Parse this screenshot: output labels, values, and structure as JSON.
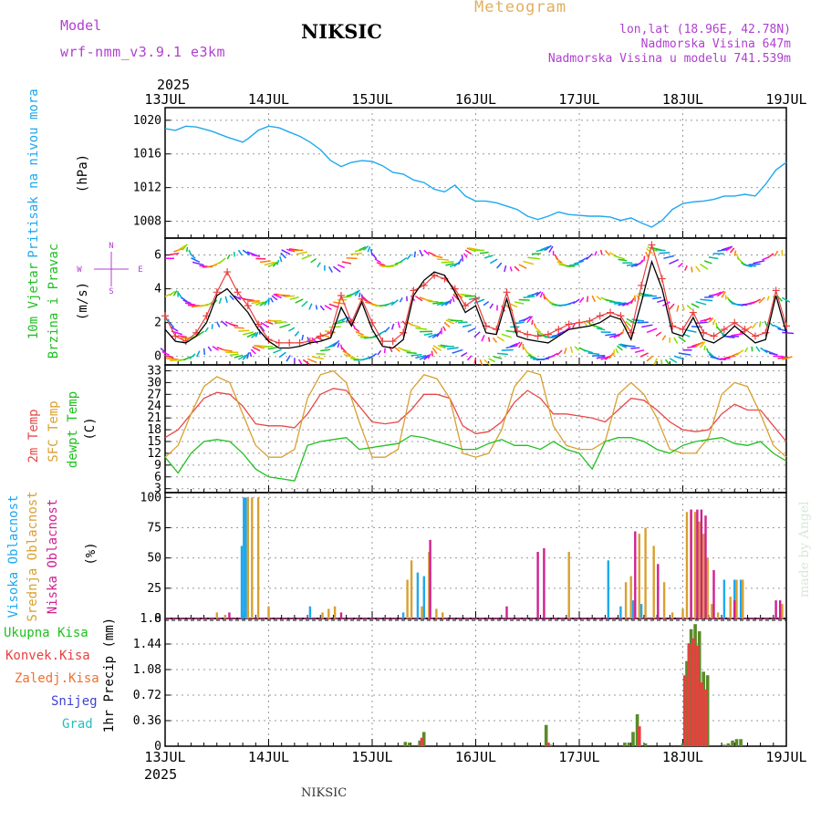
{
  "header": {
    "model_label": "Model",
    "model_name": "wrf-nmm_v3.9.1 e3km",
    "station_title": "NIKSIC",
    "product": "Meteogram",
    "lonlat": "lon,lat (18.96E, 42.78N)",
    "elevation": "Nadmorska Visina 647m",
    "model_elevation": "Nadmorska Visina u modelu 741.539m",
    "footer_station": "NIKSIC",
    "credit": "made by Angel"
  },
  "colors": {
    "pressure": "#1ea8f0",
    "wind_obs": "#e84040",
    "wind_line": "#000000",
    "t2m": "#e84848",
    "sfc": "#d8a030",
    "dewpt": "#20c020",
    "high_cloud": "#1ea8f0",
    "mid_cloud": "#d8a030",
    "low_cloud": "#d02090",
    "total_precip": "#5a8a28",
    "conv_precip": "#e84040",
    "frz_precip": "#f07030",
    "snow": "#4040d0",
    "hail": "#20c0c0",
    "magenta_label": "#b040d0"
  },
  "chart_data": [
    {
      "type": "line",
      "panel": "pressure",
      "year": "2025",
      "x_labels": [
        "13JUL",
        "14JUL",
        "15JUL",
        "16JUL",
        "17JUL",
        "18JUL",
        "19JUL"
      ],
      "xlabel_days": [
        0,
        1,
        2,
        3,
        4,
        5,
        6
      ],
      "ylabel_main": "Pritisak na nivou mora",
      "ylabel_unit": "(hPa)",
      "ylim": [
        1006,
        1021.5
      ],
      "yticks": [
        1008,
        1012,
        1016,
        1020
      ],
      "x": [
        0,
        0.1,
        0.2,
        0.3,
        0.45,
        0.6,
        0.75,
        0.8,
        0.9,
        1.0,
        1.1,
        1.2,
        1.3,
        1.4,
        1.5,
        1.6,
        1.7,
        1.8,
        1.9,
        2.0,
        2.1,
        2.2,
        2.3,
        2.4,
        2.5,
        2.6,
        2.7,
        2.8,
        2.9,
        3.0,
        3.1,
        3.2,
        3.3,
        3.4,
        3.5,
        3.6,
        3.7,
        3.8,
        3.9,
        4.0,
        4.1,
        4.2,
        4.3,
        4.4,
        4.5,
        4.6,
        4.7,
        4.8,
        4.9,
        5.0,
        5.1,
        5.2,
        5.3,
        5.4,
        5.5,
        5.6,
        5.7,
        5.8,
        5.9,
        6.0
      ],
      "values": [
        1019.0,
        1018.8,
        1019.3,
        1019.2,
        1018.7,
        1018.0,
        1017.4,
        1017.8,
        1018.8,
        1019.3,
        1019.1,
        1018.6,
        1018.1,
        1017.4,
        1016.5,
        1015.2,
        1014.5,
        1015.0,
        1015.2,
        1015.1,
        1014.6,
        1013.8,
        1013.6,
        1012.9,
        1012.6,
        1011.8,
        1011.5,
        1012.3,
        1011.0,
        1010.4,
        1010.4,
        1010.2,
        1009.8,
        1009.4,
        1008.6,
        1008.2,
        1008.6,
        1009.1,
        1008.8,
        1008.7,
        1008.6,
        1008.6,
        1008.5,
        1008.1,
        1008.4,
        1007.8,
        1007.3,
        1008.1,
        1009.4,
        1010.1,
        1010.3,
        1010.4,
        1010.6,
        1011.0,
        1011.0,
        1011.2,
        1011.0,
        1012.4,
        1014.1,
        1015.0
      ],
      "series": [
        {
          "name": "Pritisak"
        }
      ]
    },
    {
      "type": "line",
      "panel": "wind",
      "ylabel_main1": "10m Vjetar",
      "ylabel_main2": "Brzina i Pravac",
      "ylabel_unit": "(m/s)",
      "compass": [
        "N",
        "W",
        "E",
        "S"
      ],
      "ylim": [
        -0.5,
        7.0
      ],
      "yticks": [
        0,
        2,
        4,
        6
      ],
      "x": [
        0,
        0.1,
        0.2,
        0.3,
        0.4,
        0.5,
        0.6,
        0.7,
        0.8,
        0.9,
        1.0,
        1.1,
        1.2,
        1.3,
        1.4,
        1.5,
        1.6,
        1.7,
        1.8,
        1.9,
        2.0,
        2.1,
        2.2,
        2.3,
        2.4,
        2.5,
        2.6,
        2.7,
        2.8,
        2.9,
        3.0,
        3.1,
        3.2,
        3.3,
        3.4,
        3.5,
        3.6,
        3.7,
        3.8,
        3.9,
        4.0,
        4.1,
        4.2,
        4.3,
        4.4,
        4.5,
        4.6,
        4.7,
        4.8,
        4.9,
        5.0,
        5.1,
        5.2,
        5.3,
        5.4,
        5.5,
        5.6,
        5.7,
        5.8,
        5.9,
        6.0
      ],
      "series": [
        {
          "name": "model",
          "values": [
            1.6,
            0.9,
            0.8,
            1.2,
            2.0,
            3.6,
            4.0,
            3.3,
            2.6,
            1.6,
            0.9,
            0.5,
            0.5,
            0.6,
            0.8,
            0.9,
            1.1,
            2.9,
            1.8,
            3.2,
            1.6,
            0.6,
            0.5,
            1.0,
            3.6,
            4.5,
            5.0,
            4.8,
            3.8,
            2.6,
            3.0,
            1.4,
            1.3,
            3.4,
            1.2,
            1.0,
            0.9,
            0.8,
            1.2,
            1.6,
            1.7,
            1.8,
            2.0,
            2.4,
            2.2,
            1.0,
            3.2,
            5.6,
            4.0,
            1.4,
            1.2,
            2.3,
            1.0,
            0.8,
            1.2,
            1.8,
            1.3,
            0.8,
            1.0,
            3.6,
            1.4
          ]
        },
        {
          "name": "obs",
          "values": [
            2.4,
            1.2,
            0.9,
            1.4,
            2.4,
            3.8,
            5.0,
            3.8,
            3.0,
            1.9,
            1.0,
            0.8,
            0.8,
            0.8,
            0.9,
            1.2,
            1.4,
            3.6,
            2.0,
            3.4,
            2.0,
            0.9,
            0.9,
            1.4,
            3.9,
            4.2,
            4.8,
            4.6,
            4.0,
            3.0,
            3.4,
            1.8,
            1.6,
            3.8,
            1.5,
            1.3,
            1.2,
            1.3,
            1.6,
            1.9,
            2.0,
            2.1,
            2.4,
            2.6,
            2.4,
            1.4,
            4.2,
            6.6,
            4.6,
            1.8,
            1.6,
            2.6,
            1.4,
            1.2,
            1.6,
            2.0,
            1.6,
            1.2,
            1.4,
            3.9,
            1.8
          ]
        }
      ]
    },
    {
      "type": "line",
      "panel": "temperature",
      "ylabel_a": "2m Temp",
      "ylabel_b": "SFC Temp",
      "ylabel_c": "dewpt Temp",
      "ylabel_unit": "(C)",
      "ylim": [
        2,
        34.5
      ],
      "yticks": [
        3,
        6,
        9,
        12,
        15,
        18,
        21,
        24,
        27,
        30,
        33
      ],
      "x": [
        0,
        0.125,
        0.25,
        0.375,
        0.5,
        0.625,
        0.75,
        0.875,
        1.0,
        1.125,
        1.25,
        1.375,
        1.5,
        1.625,
        1.75,
        1.875,
        2.0,
        2.125,
        2.25,
        2.375,
        2.5,
        2.625,
        2.75,
        2.875,
        3.0,
        3.125,
        3.25,
        3.375,
        3.5,
        3.625,
        3.75,
        3.875,
        4.0,
        4.125,
        4.25,
        4.375,
        4.5,
        4.625,
        4.75,
        4.875,
        5.0,
        5.125,
        5.25,
        5.375,
        5.5,
        5.625,
        5.75,
        5.875,
        6.0
      ],
      "series": [
        {
          "name": "2m Temp",
          "values": [
            16,
            18,
            22,
            26,
            27.5,
            27,
            24,
            19.5,
            19,
            19,
            18.5,
            22,
            27,
            28.5,
            28,
            24,
            20,
            19.5,
            20,
            23,
            27,
            27,
            26,
            19,
            17,
            17.5,
            20,
            25,
            28,
            26,
            22,
            22,
            21.5,
            21,
            20,
            23,
            26,
            25.5,
            23,
            20,
            18,
            17.5,
            18,
            22,
            24.5,
            23,
            23,
            19,
            15
          ]
        },
        {
          "name": "SFC Temp",
          "values": [
            11,
            14,
            22,
            29,
            31.5,
            30,
            22,
            14,
            11,
            11,
            13,
            26,
            32,
            33,
            30,
            20,
            11,
            11,
            13,
            28,
            32,
            31,
            26,
            12,
            11,
            12,
            18,
            29,
            33,
            32,
            19,
            14,
            13,
            13,
            15,
            27,
            30,
            27,
            21,
            13,
            12,
            12,
            16,
            27,
            30,
            29,
            22,
            14,
            11
          ]
        },
        {
          "name": "dewpt Temp",
          "values": [
            11,
            7,
            12,
            15,
            15.5,
            15,
            12,
            8,
            6,
            5.5,
            5,
            14,
            15,
            15.5,
            16,
            13,
            13.5,
            14,
            14.5,
            16.5,
            16,
            15,
            14,
            13,
            13,
            14.5,
            15.5,
            14,
            14,
            13,
            15,
            13,
            12,
            8,
            15,
            16,
            16,
            15,
            13,
            12,
            14,
            15,
            15.5,
            16,
            14.5,
            14,
            15,
            12,
            10
          ]
        }
      ]
    },
    {
      "type": "bar",
      "panel": "clouds",
      "ylabel_a": "Visoka Oblacnost",
      "ylabel_b": "Srednja Oblacnost",
      "ylabel_c": "Niska Oblacnost",
      "ylabel_unit": "(%)",
      "ylim": [
        0,
        104
      ],
      "yticks": [
        0,
        25,
        50,
        75,
        100
      ],
      "series": [
        {
          "name": "Visoka",
          "x": [
            0.74,
            0.76,
            0.78,
            1.4,
            2.3,
            2.44,
            2.5,
            4.28,
            4.4,
            4.52,
            4.6,
            5.4,
            5.5,
            5.56
          ],
          "values": [
            60,
            100,
            100,
            10,
            5,
            38,
            35,
            48,
            10,
            15,
            12,
            32,
            32,
            32
          ]
        },
        {
          "name": "Srednja",
          "x": [
            0.5,
            0.58,
            0.8,
            0.84,
            0.9,
            1.0,
            1.52,
            1.58,
            1.64,
            2.34,
            2.38,
            2.48,
            2.55,
            2.62,
            2.68,
            3.9,
            4.45,
            4.5,
            4.58,
            4.64,
            4.72,
            4.82,
            4.9,
            5.0,
            5.04,
            5.08,
            5.12,
            5.16,
            5.2,
            5.24,
            5.28,
            5.34,
            5.46,
            5.52,
            5.58,
            5.96
          ],
          "values": [
            5,
            3,
            100,
            100,
            100,
            10,
            5,
            8,
            10,
            32,
            48,
            10,
            55,
            8,
            5,
            55,
            30,
            35,
            70,
            75,
            60,
            30,
            5,
            8,
            88,
            90,
            88,
            80,
            70,
            50,
            12,
            5,
            18,
            32,
            32,
            12
          ]
        },
        {
          "name": "Niska",
          "x": [
            0.62,
            1.7,
            2.56,
            3.3,
            3.6,
            3.66,
            4.54,
            4.76,
            5.08,
            5.14,
            5.18,
            5.22,
            5.3,
            5.5,
            5.9,
            5.94
          ],
          "values": [
            5,
            5,
            65,
            10,
            55,
            58,
            72,
            45,
            90,
            90,
            90,
            85,
            40,
            15,
            15,
            15
          ]
        }
      ]
    },
    {
      "type": "bar",
      "panel": "precip",
      "ylabel": "1hr Precip (mm)",
      "legend": [
        "Ukupna Kisa",
        "Konvek.Kisa",
        "Zaledj.Kisa",
        "Snijeg",
        "Grad"
      ],
      "ylim": [
        0,
        1.8
      ],
      "yticks": [
        0,
        0.36,
        0.72,
        1.08,
        1.44,
        1.8
      ],
      "x_labels": [
        "13JUL",
        "14JUL",
        "15JUL",
        "16JUL",
        "17JUL",
        "18JUL",
        "19JUL"
      ],
      "year": "2025",
      "series": [
        {
          "name": "Ukupna Kisa",
          "x": [
            2.32,
            2.36,
            2.46,
            2.5,
            3.68,
            3.72,
            4.44,
            4.48,
            4.52,
            4.56,
            4.64,
            5.0,
            5.04,
            5.08,
            5.12,
            5.16,
            5.2,
            5.24,
            5.4,
            5.44,
            5.48,
            5.52,
            5.56
          ],
          "values": [
            0.06,
            0.05,
            0.08,
            0.2,
            0.3,
            0.02,
            0.05,
            0.05,
            0.2,
            0.45,
            0.04,
            0.04,
            1.2,
            1.65,
            1.72,
            1.62,
            1.05,
            1.0,
            0.02,
            0.04,
            0.08,
            0.1,
            0.1
          ]
        },
        {
          "name": "Konvek.Kisa",
          "x": [
            2.48,
            3.7,
            4.58,
            5.02,
            5.06,
            5.1,
            5.14,
            5.18,
            5.22
          ],
          "values": [
            0.12,
            0.05,
            0.28,
            1.0,
            1.45,
            1.52,
            1.42,
            0.9,
            0.8
          ]
        }
      ]
    }
  ]
}
